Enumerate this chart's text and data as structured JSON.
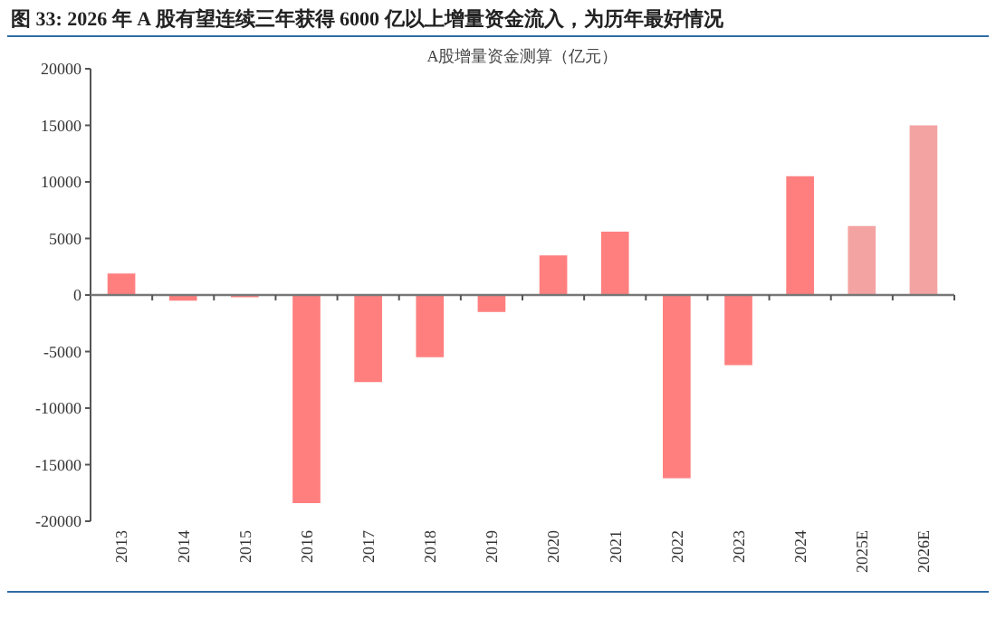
{
  "chart_data": {
    "type": "bar",
    "title": "图 33: 2026 年 A 股有望连续三年获得 6000 亿以上增量资金流入，为历年最好情况",
    "subtitle": "A股增量资金测算（亿元）",
    "categories": [
      "2013",
      "2014",
      "2015",
      "2016",
      "2017",
      "2018",
      "2019",
      "2020",
      "2021",
      "2022",
      "2023",
      "2024",
      "2025E",
      "2026E"
    ],
    "values": [
      1900,
      -500,
      -200,
      -18400,
      -7700,
      -5500,
      -1500,
      3500,
      5600,
      -16200,
      -6200,
      10500,
      6100,
      15000
    ],
    "colors": [
      "#ff7f7f",
      "#ff7f7f",
      "#ff7f7f",
      "#ff7f7f",
      "#ff7f7f",
      "#ff7f7f",
      "#ff7f7f",
      "#ff7f7f",
      "#ff7f7f",
      "#ff7f7f",
      "#ff7f7f",
      "#ff7f7f",
      "#f4a3a3",
      "#f4a3a3"
    ],
    "ylim": [
      -20000,
      20000
    ],
    "yticks": [
      -20000,
      -15000,
      -10000,
      -5000,
      0,
      5000,
      10000,
      15000,
      20000
    ]
  }
}
